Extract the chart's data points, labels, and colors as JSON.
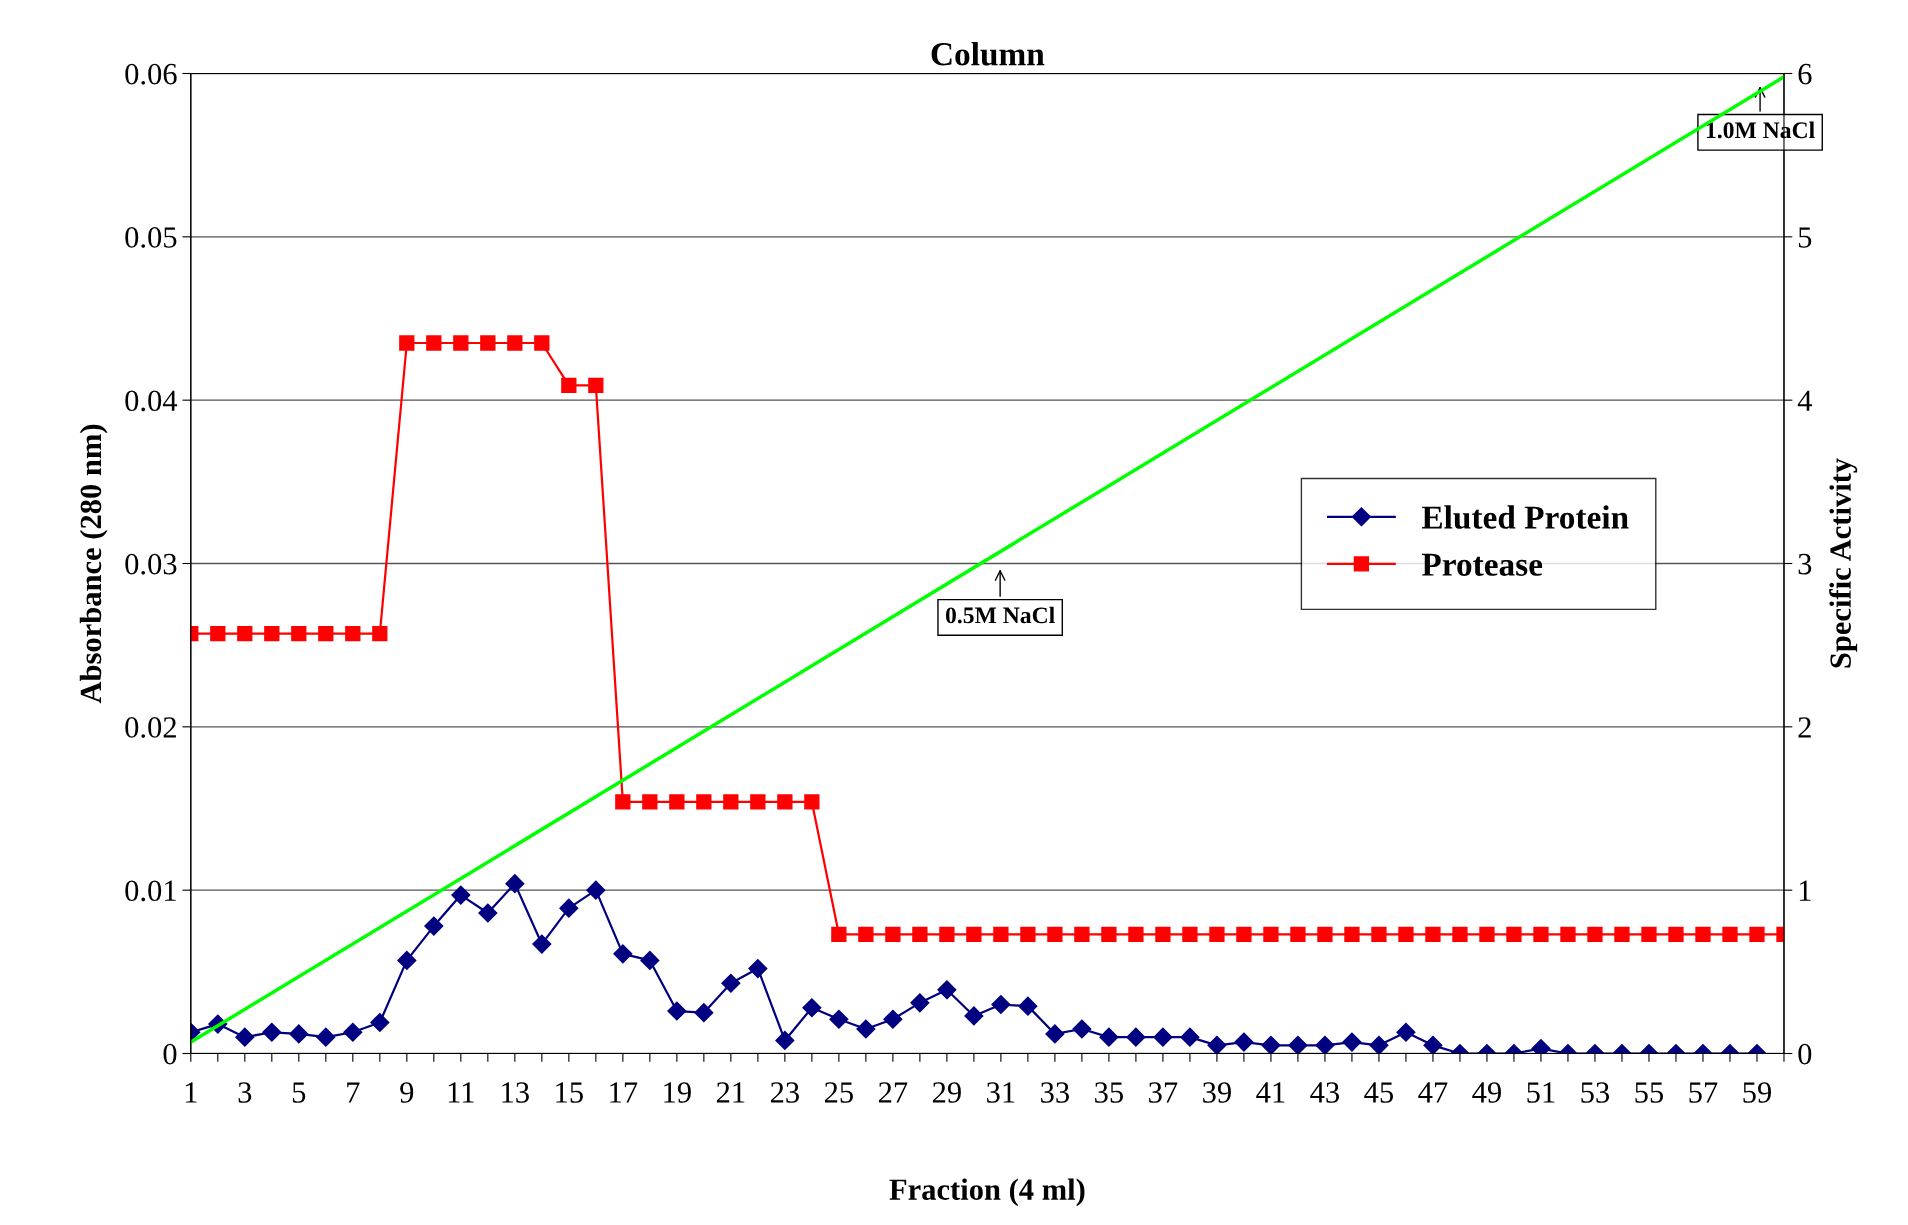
{
  "chart_data": {
    "type": "line",
    "title": "Column",
    "xlabel": "Fraction (4 ml)",
    "ylabel": "Absorbance (280 nm)",
    "y2label": "Specific Activity",
    "x": [
      1,
      2,
      3,
      4,
      5,
      6,
      7,
      8,
      9,
      10,
      11,
      12,
      13,
      14,
      15,
      16,
      17,
      18,
      19,
      20,
      21,
      22,
      23,
      24,
      25,
      26,
      27,
      28,
      29,
      30,
      31,
      32,
      33,
      34,
      35,
      36,
      37,
      38,
      39,
      40,
      41,
      42,
      43,
      44,
      45,
      46,
      47,
      48,
      49,
      50,
      51,
      52,
      53,
      54,
      55,
      56,
      57,
      58,
      59,
      60
    ],
    "series": [
      {
        "name": "Eluted Protein",
        "color": "#000080",
        "marker": "diamond",
        "values": [
          0.0013,
          0.0018,
          0.001,
          0.0013,
          0.0012,
          0.001,
          0.0013,
          0.0019,
          0.0057,
          0.0078,
          0.0097,
          0.0086,
          0.0104,
          0.0067,
          0.0089,
          0.01,
          0.0061,
          0.0057,
          0.0026,
          0.0025,
          0.0043,
          0.0052,
          0.0008,
          0.0028,
          0.0021,
          0.0015,
          0.0021,
          0.0031,
          0.0039,
          0.0023,
          0.003,
          0.0029,
          0.0012,
          0.0015,
          0.001,
          0.001,
          0.001,
          0.001,
          0.0005,
          0.0007,
          0.0005,
          0.0005,
          0.0005,
          0.0007,
          0.0005,
          0.0013,
          0.0005,
          0,
          0,
          0,
          0.0003,
          0,
          0,
          0,
          0,
          0,
          0,
          0,
          0,
          null
        ]
      },
      {
        "name": "Protease",
        "color": "#ff0000",
        "marker": "square",
        "axis": "y2",
        "values": [
          2.57,
          2.57,
          2.57,
          2.57,
          2.57,
          2.57,
          2.57,
          2.57,
          4.35,
          4.35,
          4.35,
          4.35,
          4.35,
          4.35,
          4.09,
          4.09,
          1.54,
          1.54,
          1.54,
          1.54,
          1.54,
          1.54,
          1.54,
          1.54,
          0.73,
          0.73,
          0.73,
          0.73,
          0.73,
          0.73,
          0.73,
          0.73,
          0.73,
          0.73,
          0.73,
          0.73,
          0.73,
          0.73,
          0.73,
          0.73,
          0.73,
          0.73,
          0.73,
          0.73,
          0.73,
          0.73,
          0.73,
          0.73,
          0.73,
          0.73,
          0.73,
          0.73,
          0.73,
          0.73,
          0.73,
          0.73,
          0.73,
          0.73,
          0.73,
          0.73
        ]
      },
      {
        "color": "#00ff00",
        "marker": "none",
        "axis": "y2",
        "x": [
          1,
          60
        ],
        "values": [
          0.07,
          5.98
        ]
      }
    ],
    "xlim": [
      1,
      60
    ],
    "xticks": [
      1,
      {
        "value": 2,
        "label": null
      },
      3,
      {
        "value": 4,
        "label": null
      },
      5,
      {
        "value": 6,
        "label": null
      },
      7,
      {
        "value": 8,
        "label": null
      },
      9,
      {
        "value": 10,
        "label": null
      },
      11,
      {
        "value": 12,
        "label": null
      },
      13,
      {
        "value": 14,
        "label": null
      },
      15,
      {
        "value": 16,
        "label": null
      },
      17,
      {
        "value": 18,
        "label": null
      },
      19,
      {
        "value": 20,
        "label": null
      },
      21,
      {
        "value": 22,
        "label": null
      },
      23,
      {
        "value": 24,
        "label": null
      },
      25,
      {
        "value": 26,
        "label": null
      },
      27,
      {
        "value": 28,
        "label": null
      },
      29,
      {
        "value": 30,
        "label": null
      },
      31,
      {
        "value": 32,
        "label": null
      },
      33,
      {
        "value": 34,
        "label": null
      },
      35,
      {
        "value": 36,
        "label": null
      },
      37,
      {
        "value": 38,
        "label": null
      },
      39,
      {
        "value": 40,
        "label": null
      },
      41,
      {
        "value": 42,
        "label": null
      },
      43,
      {
        "value": 44,
        "label": null
      },
      45,
      {
        "value": 46,
        "label": null
      },
      47,
      {
        "value": 48,
        "label": null
      },
      49,
      {
        "value": 50,
        "label": null
      },
      51,
      {
        "value": 52,
        "label": null
      },
      53,
      {
        "value": 54,
        "label": null
      },
      55,
      {
        "value": 56,
        "label": null
      },
      57,
      {
        "value": 58,
        "label": null
      },
      59,
      {
        "value": 60,
        "label": null
      }
    ],
    "ylim": [
      0,
      0.06
    ],
    "yticks": [
      0,
      0.01,
      0.02,
      0.03,
      0.04,
      0.05,
      0.06
    ],
    "y2lim": [
      0,
      6
    ],
    "y2ticks": [
      0,
      1,
      2,
      3,
      4,
      5,
      6
    ],
    "annotations": [
      "0.5M NaCl",
      "1.0M NaCl"
    ],
    "grid": "y",
    "legend": "right",
    "line_style": "solid"
  }
}
